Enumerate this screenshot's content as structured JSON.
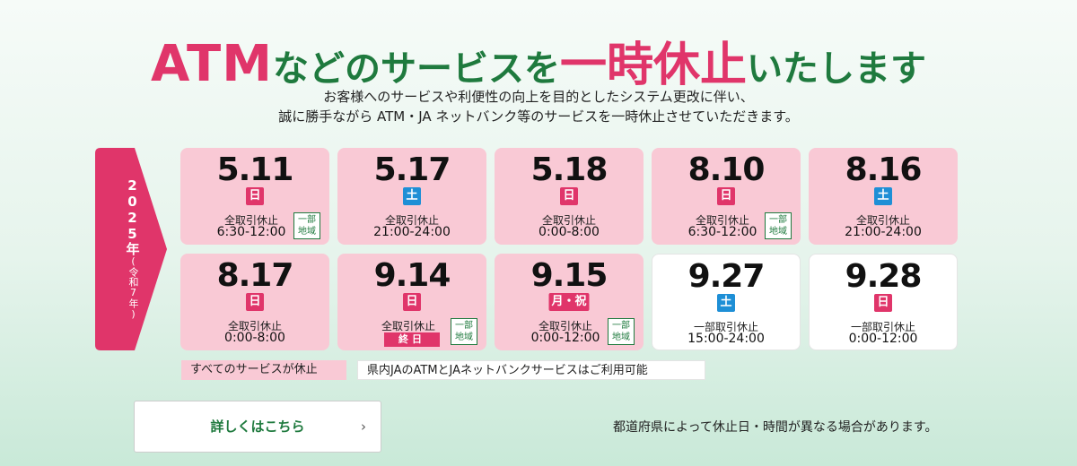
{
  "title": {
    "part1": "ATM",
    "part2": "などのサービスを",
    "part3": "一時休止",
    "part4": "いたします"
  },
  "subtitle": {
    "line1": "お客様へのサービスや利便性の向上を目的としたシステム更改に伴い、",
    "line2": "誠に勝手ながら ATM・JA ネットバンク等のサービスを一時休止させていただきます。"
  },
  "year_tab": {
    "year": "2025年",
    "era": "(令和7年)"
  },
  "cards": [
    {
      "date": "5.11",
      "day": "日",
      "l1": "全取引休止",
      "l2": "6:30-12:00",
      "region": "一部地域"
    },
    {
      "date": "5.17",
      "day": "土",
      "l1": "全取引休止",
      "l2": "21:00-24:00"
    },
    {
      "date": "5.18",
      "day": "日",
      "l1": "全取引休止",
      "l2": "0:00-8:00"
    },
    {
      "date": "8.10",
      "day": "日",
      "l1": "全取引休止",
      "l2": "6:30-12:00",
      "region": "一部地域"
    },
    {
      "date": "8.16",
      "day": "土",
      "l1": "全取引休止",
      "l2": "21:00-24:00"
    },
    {
      "date": "8.17",
      "day": "日",
      "l1": "全取引休止",
      "l2": "0:00-8:00"
    },
    {
      "date": "9.14",
      "day": "日",
      "l1": "全取引休止",
      "end_badge": "終日",
      "region": "一部地域"
    },
    {
      "date": "9.15",
      "day": "月・祝",
      "l1": "全取引休止",
      "l2": "0:00-12:00",
      "region": "一部地域"
    },
    {
      "date": "9.27",
      "day": "土",
      "l1": "一部取引休止",
      "l2": "15:00-24:00"
    },
    {
      "date": "9.28",
      "day": "日",
      "l1": "一部取引休止",
      "l2": "0:00-12:00"
    }
  ],
  "legend": {
    "all_suspended": "すべてのサービスが休止",
    "partial_available": "県内JAのATMとJAネットバンクサービスはご利用可能"
  },
  "more_button": {
    "label": "詳しくはこちら",
    "chevron": "›"
  },
  "note": "都道府県によって休止日・時間が異なる場合があります。",
  "colors": {
    "accent_pink": "#e0356a",
    "green": "#1f7a3e",
    "sat_blue": "#1e8fd6",
    "card_pink": "#f9c9d5"
  }
}
